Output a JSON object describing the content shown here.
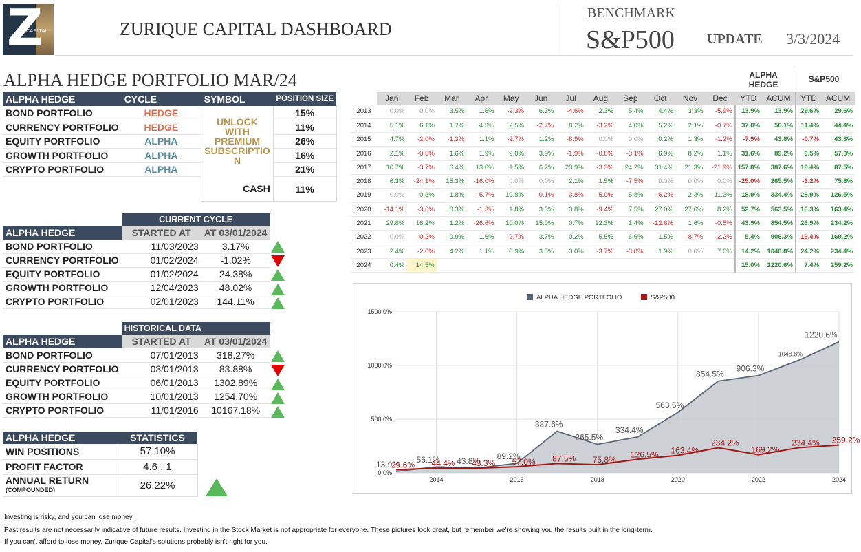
{
  "header": {
    "logo_letter": "Z",
    "logo_caption": "CAPITAL",
    "title": "ZURIQUE CAPITAL DASHBOARD",
    "benchmark_label": "BENCHMARK",
    "benchmark_value": "S&P500",
    "update_label": "UPDATE",
    "update_date": "3/3/2024"
  },
  "portfolio_title": "ALPHA HEDGE PORTFOLIO MAR/24",
  "positions": {
    "headers": [
      "ALPHA HEDGE",
      "CYCLE",
      "SYMBOL",
      "POSITION SIZE"
    ],
    "unlock_text": "UNLOCK WITH PREMIUM SUBSCRIPTIO N",
    "rows": [
      {
        "name": "BOND PORTFOLIO",
        "cycle": "HEDGE",
        "size": "15%"
      },
      {
        "name": "CURRENCY PORTFOLIO",
        "cycle": "HEDGE",
        "size": "11%"
      },
      {
        "name": "EQUITY PORTFOLIO",
        "cycle": "ALPHA",
        "size": "26%"
      },
      {
        "name": "GROWTH PORTFOLIO",
        "cycle": "ALPHA",
        "size": "16%"
      },
      {
        "name": "CRYPTO PORTFOLIO",
        "cycle": "ALPHA",
        "size": "21%"
      }
    ],
    "cash_label": "CASH",
    "cash_value": "11%"
  },
  "current_cycle": {
    "title": "CURRENT CYCLE",
    "headers": [
      "ALPHA HEDGE",
      "STARTED AT",
      "AT 03/01/2024"
    ],
    "rows": [
      {
        "name": "BOND PORTFOLIO",
        "started": "11/03/2023",
        "value": "3.17%",
        "trend": "up"
      },
      {
        "name": "CURRENCY PORTFOLIO",
        "started": "01/02/2024",
        "value": "-1.02%",
        "trend": "down"
      },
      {
        "name": "EQUITY PORTFOLIO",
        "started": "01/02/2024",
        "value": "24.38%",
        "trend": "up"
      },
      {
        "name": "GROWTH PORTFOLIO",
        "started": "12/04/2023",
        "value": "48.02%",
        "trend": "up"
      },
      {
        "name": "CRYPTO PORTFOLIO",
        "started": "02/01/2023",
        "value": "144.11%",
        "trend": "up"
      }
    ]
  },
  "historical": {
    "title": "HISTORICAL DATA",
    "headers": [
      "ALPHA HEDGE",
      "STARTED AT",
      "AT 03/01/2024"
    ],
    "rows": [
      {
        "name": "BOND PORTFOLIO",
        "started": "07/01/2013",
        "value": "318.27%",
        "trend": "up"
      },
      {
        "name": "CURRENCY PORTFOLIO",
        "started": "03/01/2013",
        "value": "83.88%",
        "trend": "down"
      },
      {
        "name": "EQUITY PORTFOLIO",
        "started": "06/01/2013",
        "value": "1302.89%",
        "trend": "up"
      },
      {
        "name": "GROWTH PORTFOLIO",
        "started": "10/01/2013",
        "value": "1254.70%",
        "trend": "up"
      },
      {
        "name": "CRYPTO PORTFOLIO",
        "started": "11/01/2016",
        "value": "10167.18%",
        "trend": "up"
      }
    ]
  },
  "statistics": {
    "headers": [
      "ALPHA HEDGE",
      "STATISTICS"
    ],
    "win_label": "WIN POSITIONS",
    "win_value": "57.10%",
    "pf_label": "PROFIT FACTOR",
    "pf_value": "4.6 : 1",
    "ar_label": "ANNUAL RETURN",
    "ar_sub": "(COMPOUNDED)",
    "ar_value": "26.22%"
  },
  "monthly": {
    "group_alpha": "ALPHA HEDGE",
    "group_sp": "S&P500",
    "months": [
      "Jan",
      "Feb",
      "Mar",
      "Apr",
      "May",
      "Jun",
      "Jul",
      "Aug",
      "Sep",
      "Oct",
      "Nov",
      "Dec"
    ],
    "summary_headers": [
      "YTD",
      "ACUM",
      "YTD",
      "ACUM"
    ],
    "rows": [
      {
        "year": "2013",
        "m": [
          "0.0%",
          "0.0%",
          "3.5%",
          "1.6%",
          "-2.3%",
          "6.3%",
          "-4.6%",
          "2.3%",
          "5.4%",
          "4.4%",
          "3.3%",
          "-5.9%"
        ],
        "ytd": "13.9%",
        "acum": "13.9%",
        "sp_ytd": "29.6%",
        "sp_acum": "29.6%"
      },
      {
        "year": "2014",
        "m": [
          "5.1%",
          "6.1%",
          "1.7%",
          "4.3%",
          "2.5%",
          "-2.7%",
          "8.2%",
          "-3.2%",
          "4.0%",
          "5.2%",
          "2.1%",
          "-0.7%"
        ],
        "ytd": "37.0%",
        "acum": "56.1%",
        "sp_ytd": "11.4%",
        "sp_acum": "44.4%"
      },
      {
        "year": "2015",
        "m": [
          "4.7%",
          "-2.0%",
          "-1.3%",
          "1.1%",
          "-2.7%",
          "1.2%",
          "-8.9%",
          "0.0%",
          "0.0%",
          "0.2%",
          "1.3%",
          "-1.2%"
        ],
        "ytd": "-7.9%",
        "acum": "43.8%",
        "sp_ytd": "-0.7%",
        "sp_acum": "43.3%"
      },
      {
        "year": "2016",
        "m": [
          "2.1%",
          "-0.5%",
          "1.6%",
          "1.9%",
          "9.0%",
          "3.9%",
          "-1.9%",
          "-0.8%",
          "-3.1%",
          "6.9%",
          "8.2%",
          "1.1%"
        ],
        "ytd": "31.6%",
        "acum": "89.2%",
        "sp_ytd": "9.5%",
        "sp_acum": "57.0%"
      },
      {
        "year": "2017",
        "m": [
          "10.7%",
          "-3.7%",
          "6.4%",
          "13.6%",
          "1.5%",
          "6.2%",
          "23.9%",
          "-3.3%",
          "24.2%",
          "31.4%",
          "21.3%",
          "-21.9%"
        ],
        "ytd": "157.8%",
        "acum": "387.6%",
        "sp_ytd": "19.4%",
        "sp_acum": "87.5%"
      },
      {
        "year": "2018",
        "m": [
          "6.3%",
          "-24.1%",
          "15.3%",
          "-16.0%",
          "0.0%",
          "0.0%",
          "2.1%",
          "1.5%",
          "-7.5%",
          "0.0%",
          "0.0%",
          "0.0%"
        ],
        "ytd": "-25.0%",
        "acum": "265.5%",
        "sp_ytd": "-6.2%",
        "sp_acum": "75.8%"
      },
      {
        "year": "2019",
        "m": [
          "0.0%",
          "0.3%",
          "1.8%",
          "-5.7%",
          "19.8%",
          "-0.1%",
          "-3.8%",
          "-5.0%",
          "5.8%",
          "-6.2%",
          "2.3%",
          "11.3%"
        ],
        "ytd": "18.9%",
        "acum": "334.4%",
        "sp_ytd": "28.9%",
        "sp_acum": "126.5%"
      },
      {
        "year": "2020",
        "m": [
          "-14.1%",
          "-3.6%",
          "0.3%",
          "-1.3%",
          "1.8%",
          "3.3%",
          "3.8%",
          "-9.4%",
          "7.5%",
          "27.0%",
          "27.6%",
          "8.2%"
        ],
        "ytd": "52.7%",
        "acum": "563.5%",
        "sp_ytd": "16.3%",
        "sp_acum": "163.4%"
      },
      {
        "year": "2021",
        "m": [
          "29.8%",
          "16.2%",
          "1.2%",
          "-26.6%",
          "10.0%",
          "15.0%",
          "0.7%",
          "12.3%",
          "1.4%",
          "-12.6%",
          "1.6%",
          "-0.5%"
        ],
        "ytd": "43.9%",
        "acum": "854.5%",
        "sp_ytd": "26.9%",
        "sp_acum": "234.2%"
      },
      {
        "year": "2022",
        "m": [
          "0.0%",
          "-0.2%",
          "0.9%",
          "1.6%",
          "-2.7%",
          "3.7%",
          "0.2%",
          "5.5%",
          "6.6%",
          "1.5%",
          "-8.7%",
          "-2.2%"
        ],
        "ytd": "5.4%",
        "acum": "906.3%",
        "sp_ytd": "-19.4%",
        "sp_acum": "169.2%"
      },
      {
        "year": "2023",
        "m": [
          "2.4%",
          "-2.6%",
          "4.2%",
          "1.1%",
          "0.9%",
          "3.5%",
          "3.0%",
          "-3.7%",
          "-3.8%",
          "1.9%",
          "0.0%",
          "7.0%"
        ],
        "ytd": "14.2%",
        "acum": "1048.8%",
        "sp_ytd": "24.2%",
        "sp_acum": "234.4%"
      },
      {
        "year": "2024",
        "m": [
          "0.4%",
          "14.5%",
          "",
          "",
          "",
          "",
          "",
          "",
          "",
          "",
          "",
          ""
        ],
        "ytd": "15.0%",
        "acum": "1220.6%",
        "sp_ytd": "7.4%",
        "sp_acum": "259.2%"
      }
    ]
  },
  "chart_data": {
    "type": "area",
    "legend": [
      "ALPHA HEDGE PORTFOLIO",
      "S&P500"
    ],
    "legend_position": "top",
    "colors": {
      "alpha_line": "#5a6578",
      "alpha_fill": "#c9ccd2",
      "sp": "#a01818"
    },
    "x": [
      2013,
      2014,
      2015,
      2016,
      2017,
      2018,
      2019,
      2020,
      2021,
      2022,
      2023,
      2024
    ],
    "series": [
      {
        "name": "ALPHA HEDGE PORTFOLIO",
        "values": [
          13.9,
          56.1,
          43.8,
          89.2,
          387.6,
          265.5,
          334.4,
          563.5,
          854.5,
          906.3,
          1048.8,
          1220.6
        ]
      },
      {
        "name": "S&P500",
        "values": [
          29.6,
          44.4,
          43.3,
          57.0,
          87.5,
          75.8,
          126.5,
          163.4,
          234.2,
          169.2,
          234.4,
          259.2
        ]
      }
    ],
    "data_labels_alpha": [
      "13.9%",
      "56.1%",
      "43.8%",
      "89.2%",
      "387.6%",
      "265.5%",
      "334.4%",
      "563.5%",
      "854.5%",
      "906.3%",
      "1048.8%",
      "1220.6%"
    ],
    "data_labels_sp": [
      "29.6%",
      "44.4%",
      "43.3%",
      "57.0%",
      "87.5%",
      "75.8%",
      "126.5%",
      "163.4%",
      "234.2%",
      "169.2%",
      "234.4%",
      "259.2%"
    ],
    "ylim": [
      0,
      1500
    ],
    "yticks": [
      "0.0%",
      "500.0%",
      "1000.0%",
      "1500.0%"
    ],
    "xticks": [
      "2014",
      "2016",
      "2018",
      "2020",
      "2022",
      "2024"
    ],
    "grid": true
  },
  "footer": [
    "Investing is risky, and you can lose money.",
    "Past results are not necessarily indicative of future results. Investing in the Stock Market is not appropriate for everyone. These pictures look great, but remember we're showing you the results built in the long-term.",
    "If you can't afford to lose money, Zurique Capital's solutions probably isn't right for you."
  ]
}
